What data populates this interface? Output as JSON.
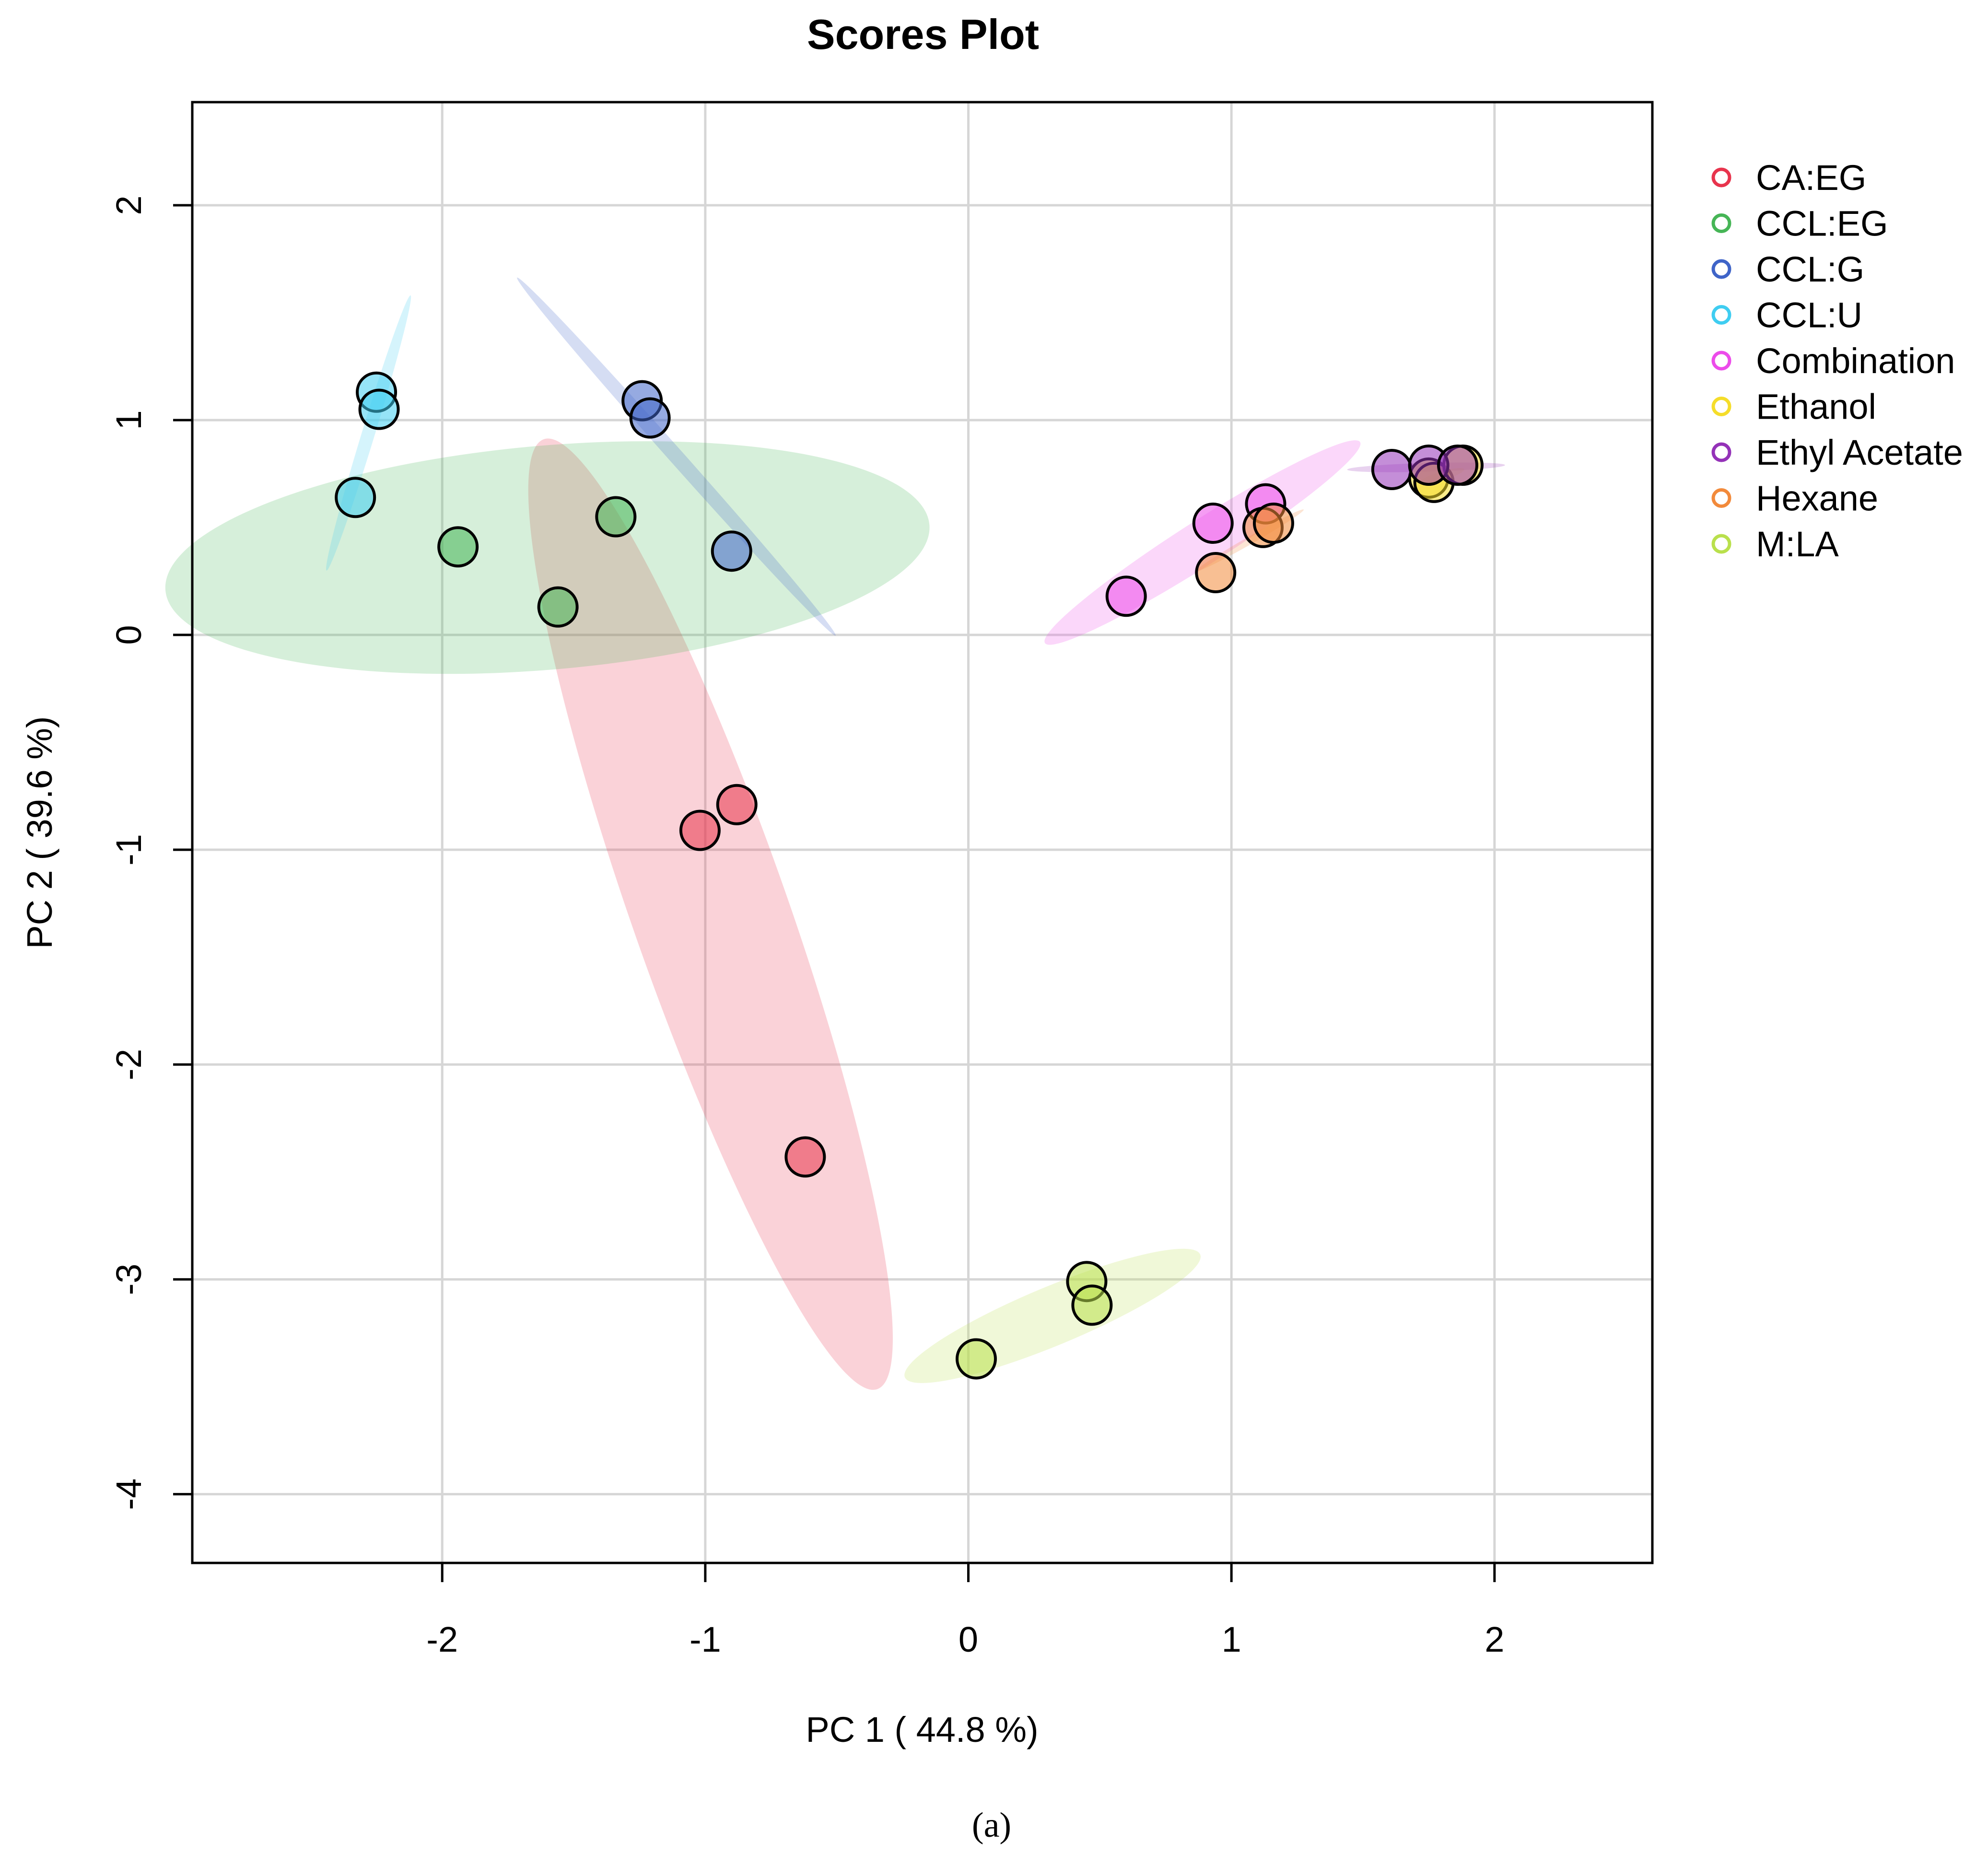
{
  "chart_data": {
    "type": "scatter",
    "title": "Scores Plot",
    "xlabel": "PC 1 ( 44.8 %)",
    "ylabel": "PC 2 ( 39.6 %)",
    "xlim": [
      -2.95,
      2.6
    ],
    "ylim": [
      -4.32,
      2.48
    ],
    "xticks": [
      -2,
      -1,
      0,
      1,
      2
    ],
    "yticks": [
      2,
      1,
      0,
      -1,
      -2,
      -3,
      -4
    ],
    "xtick_labels": [
      "-2",
      "-1",
      "0",
      "1",
      "2"
    ],
    "ytick_labels": [
      "2",
      "1",
      "0",
      "-1",
      "-2",
      "-3",
      "-4"
    ],
    "grid": true,
    "legend_position": "right-outside-top",
    "caption": "(a)",
    "series": [
      {
        "name": "CA:EG",
        "color": "#e8344d",
        "points": [
          [
            -1.02,
            -0.91
          ],
          [
            -0.88,
            -0.79
          ],
          [
            -0.62,
            -2.43
          ]
        ],
        "ellipse": {
          "cx": -0.98,
          "cy": -1.3,
          "rx": 2.3,
          "ry": 0.3,
          "angle_deg": -74
        }
      },
      {
        "name": "CCL:EG",
        "color": "#46b556",
        "points": [
          [
            -1.94,
            0.41
          ],
          [
            -1.56,
            0.13
          ],
          [
            -1.34,
            0.55
          ]
        ],
        "ellipse": {
          "cx": -1.6,
          "cy": 0.36,
          "rx": 1.46,
          "ry": 0.52,
          "angle_deg": 6
        }
      },
      {
        "name": "CCL:G",
        "color": "#3f64c8",
        "points": [
          [
            -1.24,
            1.09
          ],
          [
            -1.21,
            1.01
          ],
          [
            -0.9,
            0.39
          ]
        ],
        "ellipse": {
          "cx": -1.11,
          "cy": 0.83,
          "rx": 1.03,
          "ry": 0.03,
          "angle_deg": -54
        }
      },
      {
        "name": "CCL:U",
        "color": "#3fcdf1",
        "points": [
          [
            -2.25,
            1.13
          ],
          [
            -2.24,
            1.05
          ],
          [
            -2.33,
            0.64
          ]
        ],
        "ellipse": {
          "cx": -2.28,
          "cy": 0.94,
          "rx": 0.66,
          "ry": 0.025,
          "angle_deg": 76
        }
      },
      {
        "name": "Combination",
        "color": "#ec4bea",
        "points": [
          [
            0.6,
            0.18
          ],
          [
            0.93,
            0.52
          ],
          [
            1.13,
            0.61
          ]
        ],
        "ellipse": {
          "cx": 0.89,
          "cy": 0.43,
          "rx": 0.76,
          "ry": 0.095,
          "angle_deg": 38
        }
      },
      {
        "name": "Ethanol",
        "color": "#f5dd2a",
        "points": [
          [
            1.75,
            0.73
          ],
          [
            1.77,
            0.71
          ],
          [
            1.88,
            0.79
          ]
        ],
        "ellipse": {
          "cx": 1.8,
          "cy": 0.74,
          "rx": 0.09,
          "ry": 0.02,
          "angle_deg": 20
        }
      },
      {
        "name": "Ethyl Acetate",
        "color": "#9432b8",
        "points": [
          [
            1.61,
            0.77
          ],
          [
            1.75,
            0.79
          ],
          [
            1.86,
            0.79
          ]
        ],
        "ellipse": {
          "cx": 1.74,
          "cy": 0.78,
          "rx": 0.3,
          "ry": 0.02,
          "angle_deg": 2
        }
      },
      {
        "name": "Hexane",
        "color": "#f28a3b",
        "points": [
          [
            0.94,
            0.29
          ],
          [
            1.12,
            0.5
          ],
          [
            1.16,
            0.52
          ]
        ],
        "ellipse": {
          "cx": 1.07,
          "cy": 0.44,
          "rx": 0.25,
          "ry": 0.012,
          "angle_deg": 35
        }
      },
      {
        "name": "M:LA",
        "color": "#b9e04c",
        "points": [
          [
            0.03,
            -3.37
          ],
          [
            0.45,
            -3.01
          ],
          [
            0.47,
            -3.12
          ]
        ],
        "ellipse": {
          "cx": 0.32,
          "cy": -3.17,
          "rx": 0.63,
          "ry": 0.13,
          "angle_deg": 27
        }
      }
    ]
  }
}
